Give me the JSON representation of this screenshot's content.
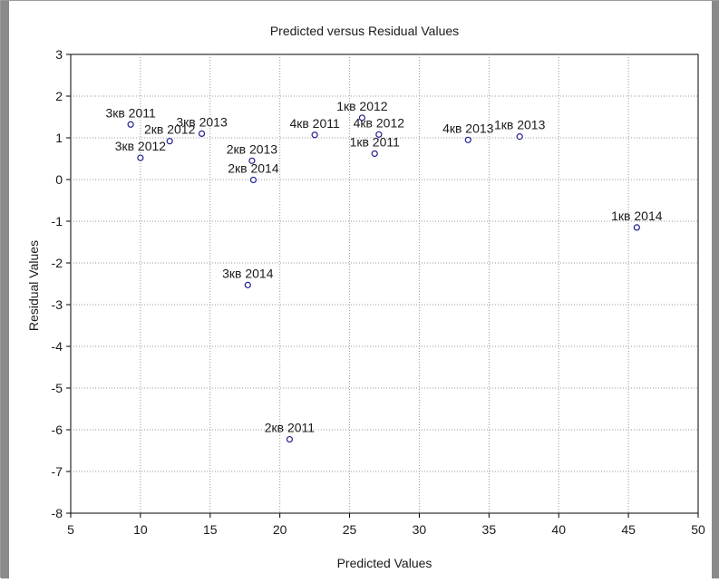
{
  "chart_data": {
    "type": "scatter",
    "title": "Predicted versus Residual Values",
    "xlabel": "Predicted Values",
    "ylabel": "Residual Values",
    "xlim": [
      5,
      50
    ],
    "ylim": [
      -8,
      3
    ],
    "xticks": [
      "5",
      "10",
      "15",
      "20",
      "25",
      "30",
      "35",
      "40",
      "45",
      "50"
    ],
    "yticks": [
      "3",
      "2",
      "1",
      "0",
      "-1",
      "-2",
      "-3",
      "-4",
      "-5",
      "-6",
      "-7",
      "-8"
    ],
    "grid": true,
    "marker_color": "#1f1f8f",
    "points": [
      {
        "label": "3кв 2011",
        "x": 9.3,
        "y": 1.32
      },
      {
        "label": "2кв 2012",
        "x": 12.1,
        "y": 0.92
      },
      {
        "label": "3кв 2012",
        "x": 10.0,
        "y": 0.52
      },
      {
        "label": "3кв 2013",
        "x": 14.4,
        "y": 1.1
      },
      {
        "label": "2кв 2013",
        "x": 18.0,
        "y": 0.45
      },
      {
        "label": "2кв 2014",
        "x": 18.1,
        "y": -0.01
      },
      {
        "label": "4кв 2011",
        "x": 22.5,
        "y": 1.07
      },
      {
        "label": "1кв 2012",
        "x": 25.9,
        "y": 1.48
      },
      {
        "label": "4кв 2012",
        "x": 27.1,
        "y": 1.08
      },
      {
        "label": "1кв 2011",
        "x": 26.8,
        "y": 0.62
      },
      {
        "label": "4кв 2013",
        "x": 33.5,
        "y": 0.95
      },
      {
        "label": "1кв 2013",
        "x": 37.2,
        "y": 1.03
      },
      {
        "label": "1кв 2014",
        "x": 45.6,
        "y": -1.15
      },
      {
        "label": "3кв 2014",
        "x": 17.7,
        "y": -2.53
      },
      {
        "label": "2кв 2011",
        "x": 20.7,
        "y": -6.23
      }
    ]
  }
}
